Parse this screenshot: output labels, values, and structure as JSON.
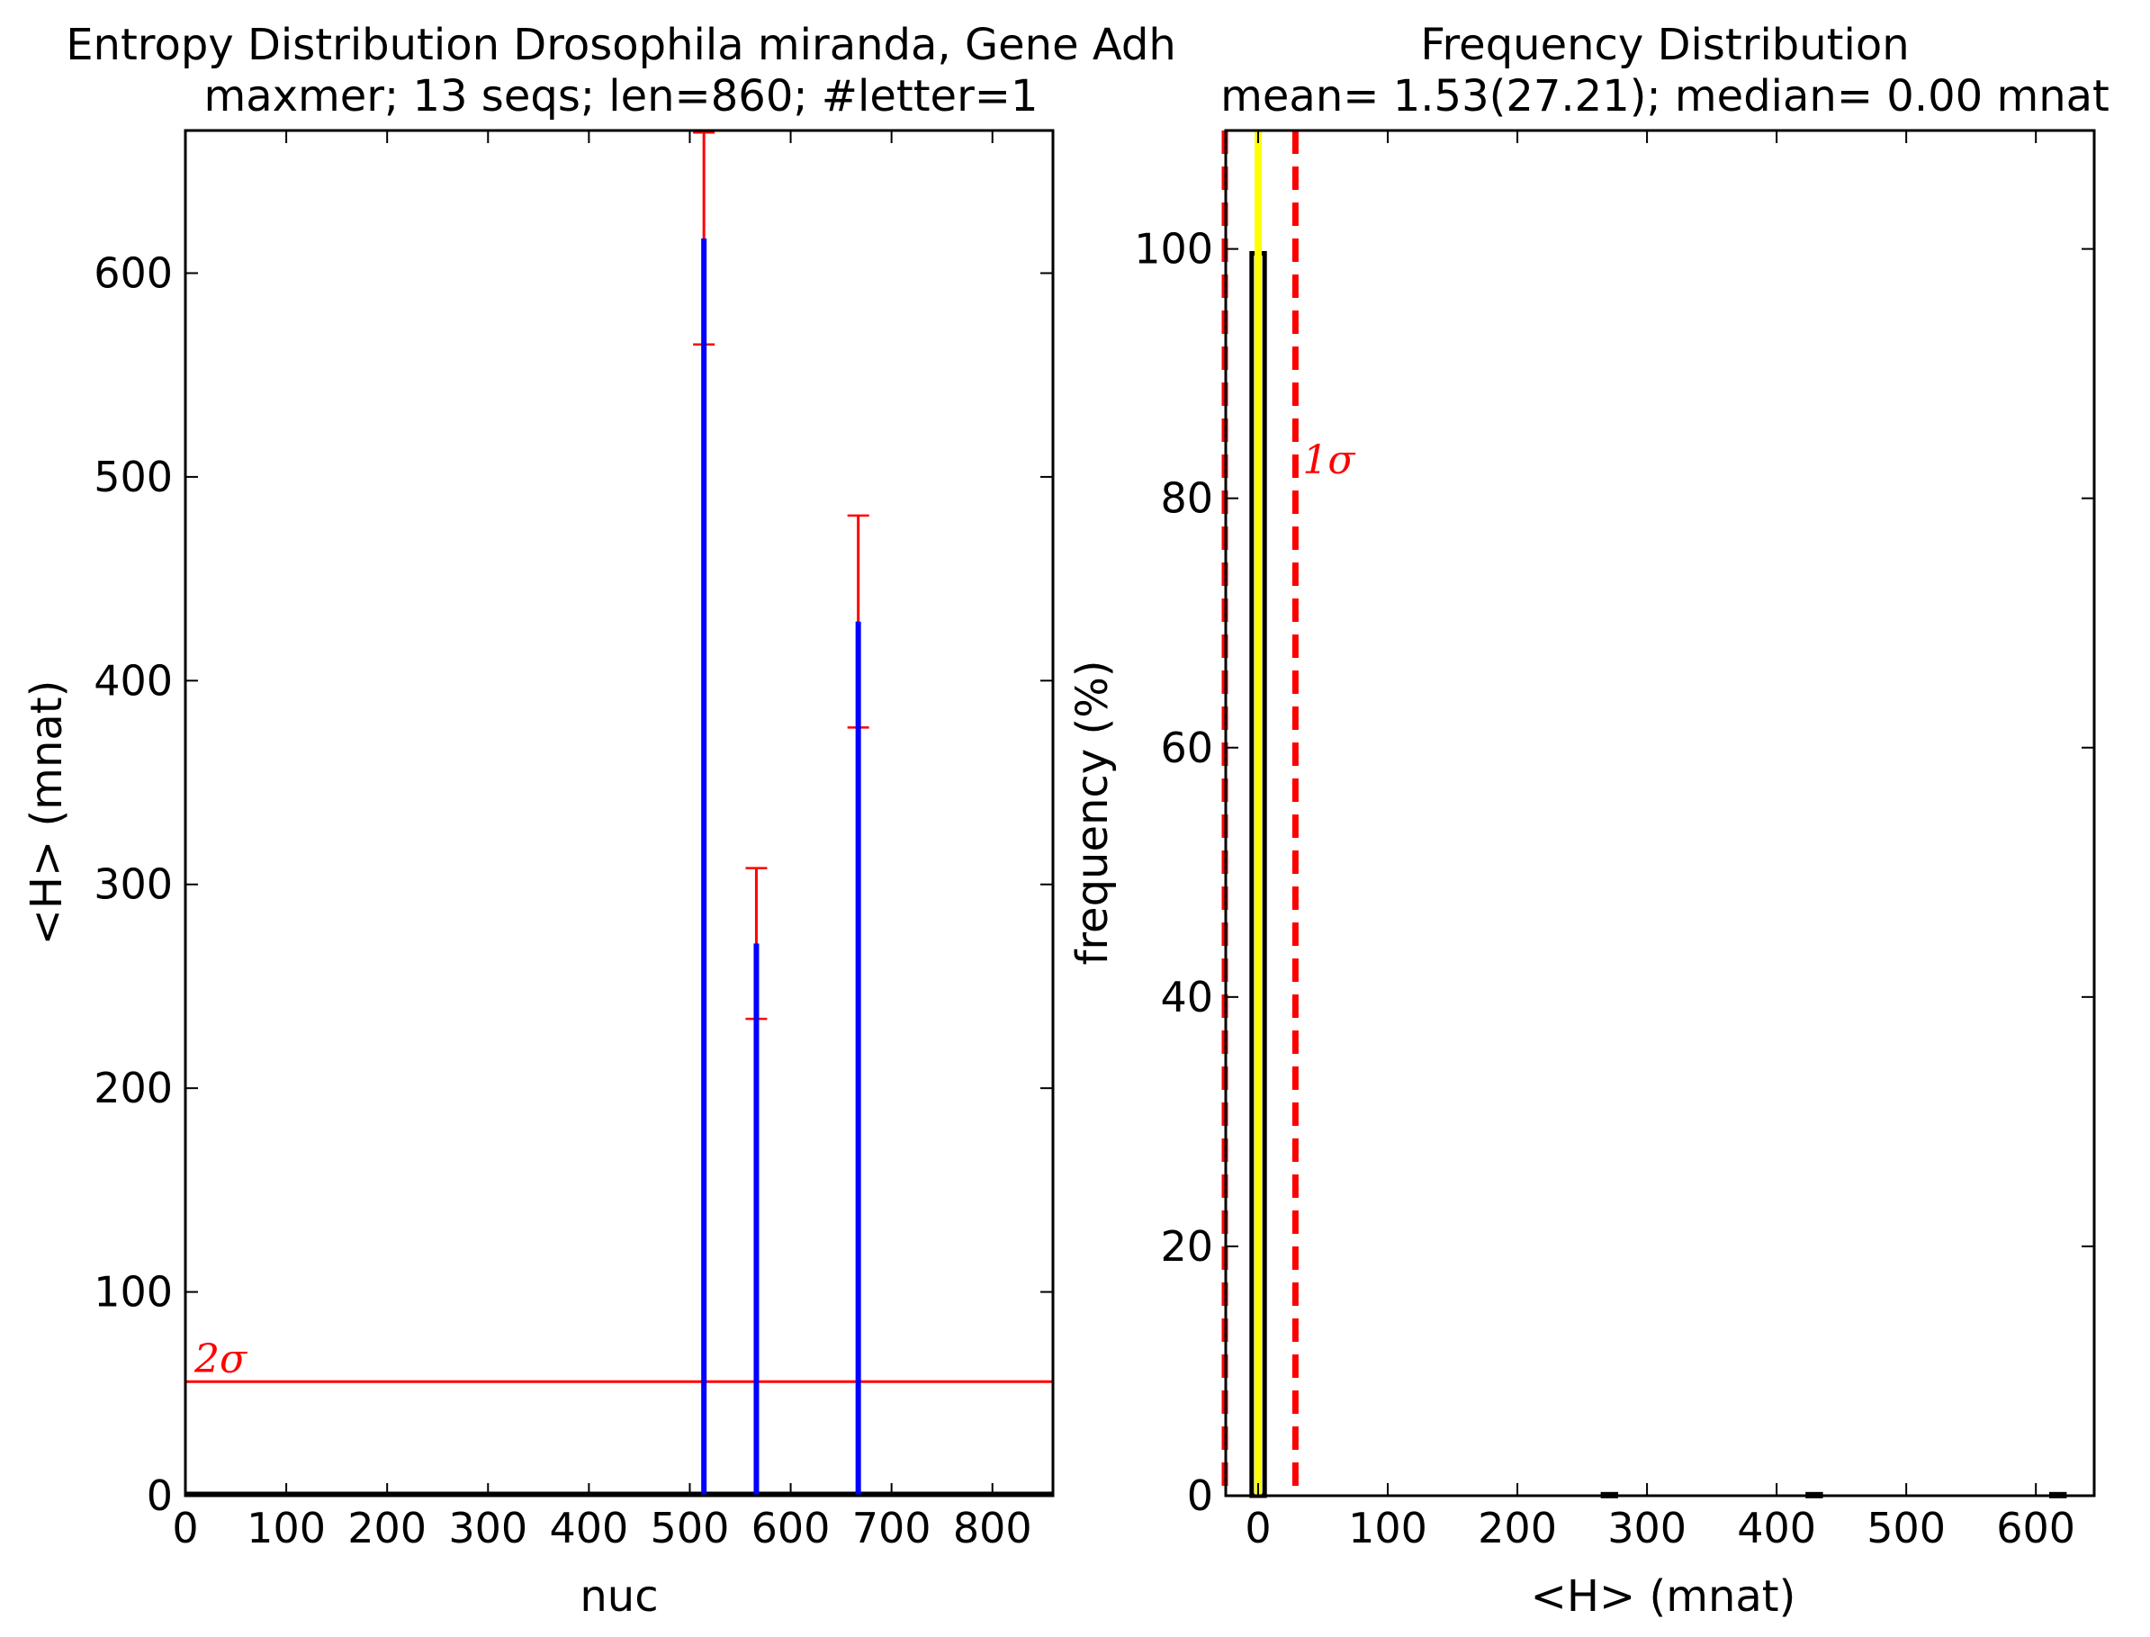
{
  "chart_data": [
    {
      "type": "bar",
      "title": "Entropy Distribution Drosophila miranda, Gene Adh",
      "subtitle": "maxmer; 13 seqs; len=860; #letter=1",
      "xlabel": "nuc",
      "ylabel": "<H> (mnat)",
      "xlim": [
        0,
        860
      ],
      "ylim": [
        0,
        670
      ],
      "xticks": [
        0,
        100,
        200,
        300,
        400,
        500,
        600,
        700,
        800
      ],
      "yticks": [
        0,
        100,
        200,
        300,
        400,
        500,
        600
      ],
      "grid": false,
      "bar_color": "#0000ff",
      "errorbar_color": "#ff0000",
      "threshold_color": "#ff0000",
      "series": [
        {
          "x": [
            514,
            566,
            667
          ],
          "values": [
            617,
            271,
            429
          ],
          "errors": [
            52,
            37,
            52
          ]
        }
      ],
      "threshold": {
        "value": 56,
        "label": "2σ"
      }
    },
    {
      "type": "bar",
      "title": "Frequency Distribution",
      "subtitle": "mean= 1.53(27.21); median= 0.00 mnat",
      "xlabel": "<H> (mnat)",
      "ylabel": "frequency (%)",
      "xlim": [
        -25,
        645
      ],
      "ylim": [
        0,
        109.5
      ],
      "xticks": [
        0,
        100,
        200,
        300,
        400,
        500,
        600
      ],
      "yticks": [
        0,
        20,
        40,
        60,
        80,
        100
      ],
      "grid": false,
      "bar_color": "#000000",
      "median_color": "#ffff00",
      "sigma_color": "#ff0000",
      "bins": [
        {
          "x": 0,
          "frequency": 99.65
        },
        {
          "x": 271,
          "frequency": 0.12
        },
        {
          "x": 429,
          "frequency": 0.12
        },
        {
          "x": 617,
          "frequency": 0.12
        }
      ],
      "bin_width": 10,
      "median": 0.0,
      "mean": 1.53,
      "std": 27.21,
      "sigma_lines": [
        -25.68,
        28.74
      ],
      "sigma_label": "1σ"
    }
  ]
}
